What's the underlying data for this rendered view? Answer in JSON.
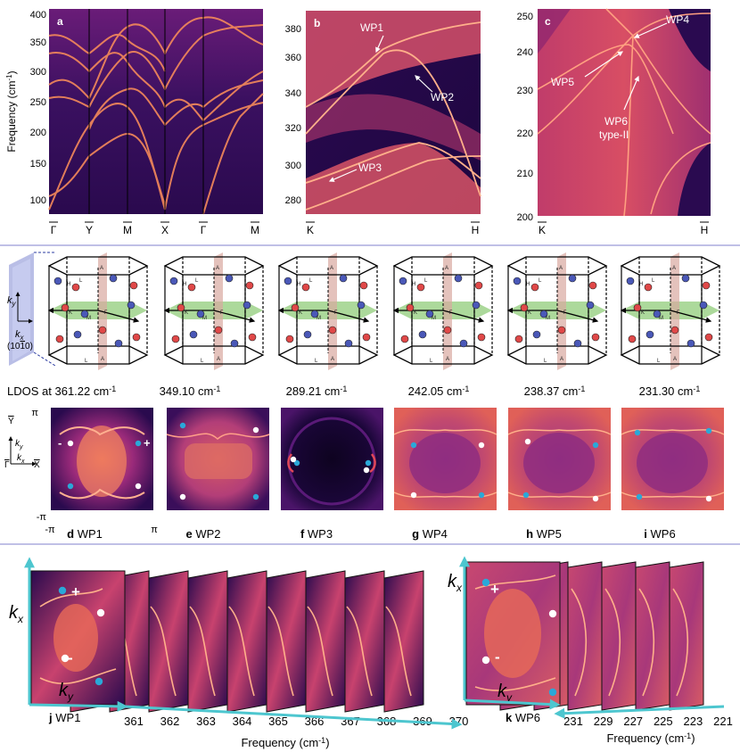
{
  "panel_a": {
    "letter": "a",
    "ylabel": "Frequency (cm",
    "ylabel_sup": "-1",
    "ylabel_end": ")",
    "yticks": [
      "400",
      "350",
      "300",
      "250",
      "200",
      "150",
      "100"
    ],
    "xticks": [
      "Γ",
      "Y",
      "M",
      "X",
      "Γ",
      "M"
    ]
  },
  "panel_b": {
    "letter": "b",
    "yticks": [
      "380",
      "360",
      "340",
      "320",
      "300",
      "280"
    ],
    "xticks": [
      "K",
      "H"
    ],
    "labels": [
      "WP1",
      "WP2",
      "WP3"
    ]
  },
  "panel_c": {
    "letter": "c",
    "yticks": [
      "250",
      "240",
      "230",
      "220",
      "210",
      "200"
    ],
    "xticks": [
      "K",
      "H"
    ],
    "labels": [
      "WP4",
      "WP5",
      "WP6",
      "type-II"
    ]
  },
  "bz": {
    "axis_ky": "k",
    "axis_ky_sub": "y",
    "axis_kx": "k",
    "axis_kx_sub": "x",
    "plane_label": "(10",
    "plane_label_bar": "1",
    "plane_label_end": "0)",
    "point_labels": [
      "A",
      "H",
      "L",
      "K",
      "M",
      "Γ"
    ]
  },
  "ldos": {
    "heading": "LDOS at",
    "unit": "cm",
    "unit_sup": "-1",
    "freqs": [
      "361.22",
      "349.10",
      "289.21",
      "242.05",
      "238.37",
      "231.30"
    ],
    "axis_pi": "π",
    "axis_mpi": "-π",
    "axis_pi_x": "π",
    "axis_mpi_x": "-π",
    "inset_y": "Y",
    "inset_g": "Γ",
    "inset_x": "X",
    "sign_minus": "-",
    "sign_plus": "+",
    "captions": [
      {
        "letter": "d",
        "text": "WP1"
      },
      {
        "letter": "e",
        "text": "WP2"
      },
      {
        "letter": "f",
        "text": "WP3"
      },
      {
        "letter": "g",
        "text": "WP4"
      },
      {
        "letter": "h",
        "text": "WP5"
      },
      {
        "letter": "i",
        "text": "WP6"
      }
    ]
  },
  "panel_j": {
    "letter": "j",
    "title": "WP1",
    "kx": "k",
    "kx_sub": "x",
    "ky": "k",
    "ky_sub": "y",
    "plus": "+",
    "minus": "-",
    "ticks": [
      "361",
      "362",
      "363",
      "364",
      "365",
      "366",
      "367",
      "368",
      "369",
      "370"
    ],
    "xlabel": "Frequency (cm",
    "xlabel_sup": "-1",
    "xlabel_end": ")"
  },
  "panel_k": {
    "letter": "k",
    "title": "WP6",
    "kx": "k",
    "kx_sub": "x",
    "ky": "k",
    "ky_sub": "y",
    "plus": "+",
    "minus": "-",
    "ticks": [
      "231",
      "229",
      "227",
      "225",
      "223",
      "221"
    ],
    "xlabel": "Frequency (cm",
    "xlabel_sup": "-1",
    "xlabel_end": ")"
  },
  "colors": {
    "dark": "#1a0838",
    "mid": "#7a1f7a",
    "bright": "#f07050",
    "cyan": "#2aa8d8",
    "divider": "#9a9ad8",
    "green": "#9ed28a",
    "arrow_cyan": "#4dc6cf"
  }
}
